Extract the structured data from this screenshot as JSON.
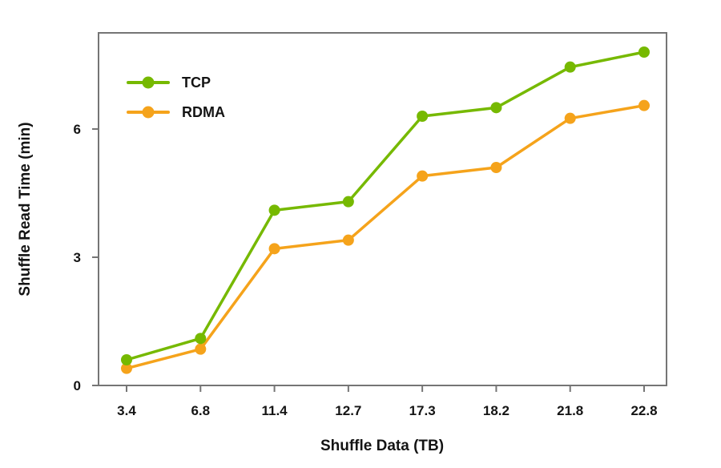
{
  "chart_data": {
    "type": "line",
    "title": "",
    "xlabel": "Shuffle Data (TB)",
    "ylabel": "Shuffle Read Time (min)",
    "categories": [
      "3.4",
      "6.8",
      "11.4",
      "12.7",
      "17.3",
      "18.2",
      "21.8",
      "22.8"
    ],
    "series": [
      {
        "name": "TCP",
        "color": "#76b900",
        "values": [
          0.6,
          1.1,
          4.1,
          4.3,
          6.3,
          6.5,
          7.45,
          7.8
        ]
      },
      {
        "name": "RDMA",
        "color": "#f5a31b",
        "values": [
          0.4,
          0.85,
          3.2,
          3.4,
          4.9,
          5.1,
          6.25,
          6.55
        ]
      }
    ],
    "yticks": [
      0,
      3,
      6
    ],
    "ylim": [
      0,
      8.25
    ],
    "grid": false,
    "legend_position": "top-left",
    "axis_color": "#757575",
    "text_color": "#141414",
    "background": "#ffffff"
  }
}
